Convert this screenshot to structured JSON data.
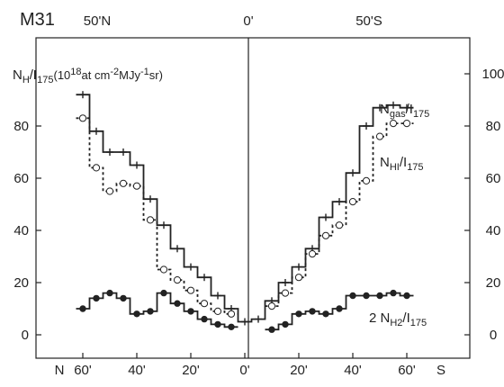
{
  "chart_data": {
    "type": "line",
    "title": "M31",
    "top_labels": {
      "left": "50'N",
      "center": "0'",
      "right": "50'S"
    },
    "ylabel": {
      "main": "N",
      "main_sub": "H",
      "slash": "/",
      "ratio": "I",
      "ratio_sub": "175",
      "units_prefix": "(10",
      "units_exp1": "18",
      "units_mid": "at cm",
      "units_exp2": "-2",
      "units_mid2": "MJy",
      "units_exp3": "-1",
      "units_end": "sr)"
    },
    "ylim": [
      -8,
      112
    ],
    "left_yticks": [
      "0",
      "20",
      "40",
      "60",
      "80"
    ],
    "left_ytick_values": [
      0,
      20,
      40,
      60,
      80
    ],
    "right_yticks": [
      "0",
      "20",
      "40",
      "60",
      "80",
      "100"
    ],
    "right_ytick_values": [
      0,
      20,
      40,
      60,
      80,
      100
    ],
    "x_unit": "arcmin offset (0 = center, N to left, S to right)",
    "xlim": [
      -75,
      72
    ],
    "xticks": [
      {
        "value": -60,
        "label": "60'"
      },
      {
        "value": -40,
        "label": "40'"
      },
      {
        "value": -20,
        "label": "20'"
      },
      {
        "value": 0,
        "label": "0'"
      },
      {
        "value": 20,
        "label": "20'"
      },
      {
        "value": 40,
        "label": "40'"
      },
      {
        "value": 60,
        "label": "60'"
      }
    ],
    "x_end_labels": {
      "left": "N",
      "right": "S"
    },
    "series": [
      {
        "name_main": "N",
        "name_sub": "gas",
        "name_slash": "/",
        "name_ratio": "I",
        "name_ratio_sub": "175",
        "style": "solid-plus",
        "x": [
          -60,
          -55,
          -50,
          -45,
          -40,
          -35,
          -30,
          -25,
          -20,
          -15,
          -10,
          -5,
          0,
          5,
          10,
          15,
          20,
          25,
          30,
          35,
          40,
          45,
          50,
          55,
          60
        ],
        "y": [
          92,
          78,
          70,
          70,
          65,
          52,
          42,
          33,
          26,
          22,
          15,
          10,
          5,
          6,
          13,
          20,
          26,
          33,
          45,
          51,
          62,
          80,
          87,
          88,
          87
        ]
      },
      {
        "name_main": "N",
        "name_sub": "HI",
        "name_slash": "/",
        "name_ratio": "I",
        "name_ratio_sub": "175",
        "style": "dashed-circle",
        "x": [
          -60,
          -55,
          -50,
          -45,
          -40,
          -35,
          -30,
          -25,
          -20,
          -15,
          -10,
          -5,
          10,
          15,
          20,
          25,
          30,
          35,
          40,
          45,
          50,
          55,
          60
        ],
        "y": [
          83,
          64,
          55,
          58,
          57,
          44,
          25,
          21,
          17,
          12,
          9,
          8,
          11,
          16,
          22,
          31,
          38,
          42,
          51,
          59,
          76,
          81,
          81
        ]
      },
      {
        "name_main": "2 N",
        "name_sub": "H2",
        "name_slash": "/",
        "name_ratio": "I",
        "name_ratio_sub": "175",
        "style": "solid-dot",
        "x": [
          -60,
          -55,
          -50,
          -45,
          -40,
          -35,
          -30,
          -25,
          -20,
          -15,
          -10,
          -5,
          10,
          15,
          20,
          25,
          30,
          35,
          40,
          45,
          50,
          55,
          60
        ],
        "y": [
          10,
          14,
          16,
          14,
          8,
          9,
          16,
          12,
          9,
          6,
          4,
          3,
          2,
          4,
          8,
          9,
          8,
          10,
          15,
          15,
          15,
          16,
          15
        ]
      }
    ],
    "colors": {
      "ink": "#222222"
    }
  }
}
